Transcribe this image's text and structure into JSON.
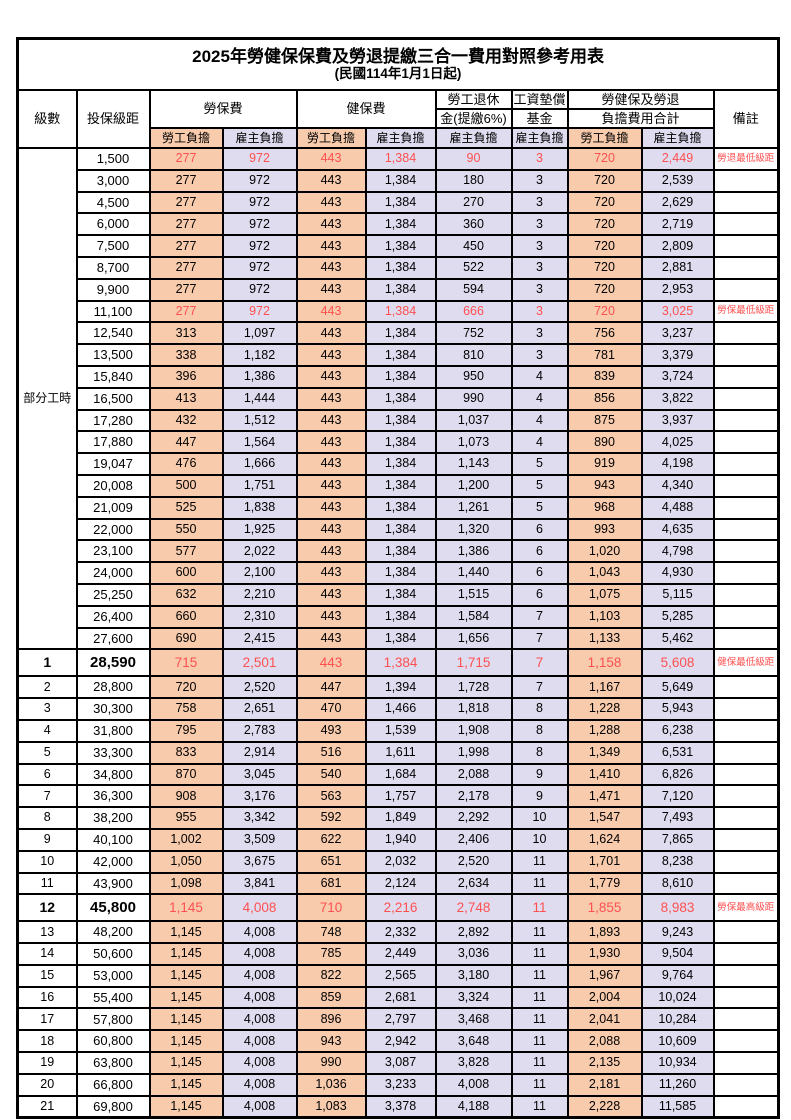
{
  "title": "2025年勞健保保費及勞退提繳三合一費用對照參考用表",
  "subtitle": "(民國114年1月1日起)",
  "headers": {
    "level": "級數",
    "bracket": "投保級距",
    "labor_insurance": "勞保費",
    "health_insurance": "健保費",
    "pension_line1": "勞工退休",
    "pension_line2": "金(提繳6%)",
    "wage_fund_line1": "工資墊償",
    "wage_fund_line2": "基金",
    "total_line1": "勞健保及勞退",
    "total_line2": "負擔費用合計",
    "remarks": "備註",
    "employee_share": "勞工負擔",
    "employer_share": "雇主負擔"
  },
  "part_time_label": "部分工時",
  "part_time_rowspan": 23,
  "colors": {
    "employee_fill": "#F8CBAD",
    "employer_fill": "#DFDCF0",
    "highlight_text": "#FF5050",
    "border": "#000000"
  },
  "column_keys": [
    "labor_employee",
    "labor_employer",
    "health_employee",
    "health_employer",
    "pension_employer",
    "wage_fund_employer",
    "total_employee",
    "total_employer"
  ],
  "rows": [
    {
      "level": "",
      "bracket": "1,500",
      "values": [
        "277",
        "972",
        "443",
        "1,384",
        "90",
        "3",
        "720",
        "2,449"
      ],
      "note": "勞退最低級距",
      "red": true
    },
    {
      "level": "",
      "bracket": "3,000",
      "values": [
        "277",
        "972",
        "443",
        "1,384",
        "180",
        "3",
        "720",
        "2,539"
      ],
      "note": ""
    },
    {
      "level": "",
      "bracket": "4,500",
      "values": [
        "277",
        "972",
        "443",
        "1,384",
        "270",
        "3",
        "720",
        "2,629"
      ],
      "note": ""
    },
    {
      "level": "",
      "bracket": "6,000",
      "values": [
        "277",
        "972",
        "443",
        "1,384",
        "360",
        "3",
        "720",
        "2,719"
      ],
      "note": ""
    },
    {
      "level": "",
      "bracket": "7,500",
      "values": [
        "277",
        "972",
        "443",
        "1,384",
        "450",
        "3",
        "720",
        "2,809"
      ],
      "note": ""
    },
    {
      "level": "",
      "bracket": "8,700",
      "values": [
        "277",
        "972",
        "443",
        "1,384",
        "522",
        "3",
        "720",
        "2,881"
      ],
      "note": ""
    },
    {
      "level": "",
      "bracket": "9,900",
      "values": [
        "277",
        "972",
        "443",
        "1,384",
        "594",
        "3",
        "720",
        "2,953"
      ],
      "note": ""
    },
    {
      "level": "",
      "bracket": "11,100",
      "values": [
        "277",
        "972",
        "443",
        "1,384",
        "666",
        "3",
        "720",
        "3,025"
      ],
      "note": "勞保最低級距",
      "red": true
    },
    {
      "level": "",
      "bracket": "12,540",
      "values": [
        "313",
        "1,097",
        "443",
        "1,384",
        "752",
        "3",
        "756",
        "3,237"
      ],
      "note": ""
    },
    {
      "level": "",
      "bracket": "13,500",
      "values": [
        "338",
        "1,182",
        "443",
        "1,384",
        "810",
        "3",
        "781",
        "3,379"
      ],
      "note": ""
    },
    {
      "level": "",
      "bracket": "15,840",
      "values": [
        "396",
        "1,386",
        "443",
        "1,384",
        "950",
        "4",
        "839",
        "3,724"
      ],
      "note": ""
    },
    {
      "level": "",
      "bracket": "16,500",
      "values": [
        "413",
        "1,444",
        "443",
        "1,384",
        "990",
        "4",
        "856",
        "3,822"
      ],
      "note": ""
    },
    {
      "level": "",
      "bracket": "17,280",
      "values": [
        "432",
        "1,512",
        "443",
        "1,384",
        "1,037",
        "4",
        "875",
        "3,937"
      ],
      "note": ""
    },
    {
      "level": "",
      "bracket": "17,880",
      "values": [
        "447",
        "1,564",
        "443",
        "1,384",
        "1,073",
        "4",
        "890",
        "4,025"
      ],
      "note": ""
    },
    {
      "level": "",
      "bracket": "19,047",
      "values": [
        "476",
        "1,666",
        "443",
        "1,384",
        "1,143",
        "5",
        "919",
        "4,198"
      ],
      "note": ""
    },
    {
      "level": "",
      "bracket": "20,008",
      "values": [
        "500",
        "1,751",
        "443",
        "1,384",
        "1,200",
        "5",
        "943",
        "4,340"
      ],
      "note": ""
    },
    {
      "level": "",
      "bracket": "21,009",
      "values": [
        "525",
        "1,838",
        "443",
        "1,384",
        "1,261",
        "5",
        "968",
        "4,488"
      ],
      "note": ""
    },
    {
      "level": "",
      "bracket": "22,000",
      "values": [
        "550",
        "1,925",
        "443",
        "1,384",
        "1,320",
        "6",
        "993",
        "4,635"
      ],
      "note": ""
    },
    {
      "level": "",
      "bracket": "23,100",
      "values": [
        "577",
        "2,022",
        "443",
        "1,384",
        "1,386",
        "6",
        "1,020",
        "4,798"
      ],
      "note": ""
    },
    {
      "level": "",
      "bracket": "24,000",
      "values": [
        "600",
        "2,100",
        "443",
        "1,384",
        "1,440",
        "6",
        "1,043",
        "4,930"
      ],
      "note": ""
    },
    {
      "level": "",
      "bracket": "25,250",
      "values": [
        "632",
        "2,210",
        "443",
        "1,384",
        "1,515",
        "6",
        "1,075",
        "5,115"
      ],
      "note": ""
    },
    {
      "level": "",
      "bracket": "26,400",
      "values": [
        "660",
        "2,310",
        "443",
        "1,384",
        "1,584",
        "7",
        "1,103",
        "5,285"
      ],
      "note": ""
    },
    {
      "level": "",
      "bracket": "27,600",
      "values": [
        "690",
        "2,415",
        "443",
        "1,384",
        "1,656",
        "7",
        "1,133",
        "5,462"
      ],
      "note": ""
    },
    {
      "level": "1",
      "bracket": "28,590",
      "values": [
        "715",
        "2,501",
        "443",
        "1,384",
        "1,715",
        "7",
        "1,158",
        "5,608"
      ],
      "note": "健保最低級距",
      "red": true,
      "bold": true
    },
    {
      "level": "2",
      "bracket": "28,800",
      "values": [
        "720",
        "2,520",
        "447",
        "1,394",
        "1,728",
        "7",
        "1,167",
        "5,649"
      ],
      "note": ""
    },
    {
      "level": "3",
      "bracket": "30,300",
      "values": [
        "758",
        "2,651",
        "470",
        "1,466",
        "1,818",
        "8",
        "1,228",
        "5,943"
      ],
      "note": ""
    },
    {
      "level": "4",
      "bracket": "31,800",
      "values": [
        "795",
        "2,783",
        "493",
        "1,539",
        "1,908",
        "8",
        "1,288",
        "6,238"
      ],
      "note": ""
    },
    {
      "level": "5",
      "bracket": "33,300",
      "values": [
        "833",
        "2,914",
        "516",
        "1,611",
        "1,998",
        "8",
        "1,349",
        "6,531"
      ],
      "note": ""
    },
    {
      "level": "6",
      "bracket": "34,800",
      "values": [
        "870",
        "3,045",
        "540",
        "1,684",
        "2,088",
        "9",
        "1,410",
        "6,826"
      ],
      "note": ""
    },
    {
      "level": "7",
      "bracket": "36,300",
      "values": [
        "908",
        "3,176",
        "563",
        "1,757",
        "2,178",
        "9",
        "1,471",
        "7,120"
      ],
      "note": ""
    },
    {
      "level": "8",
      "bracket": "38,200",
      "values": [
        "955",
        "3,342",
        "592",
        "1,849",
        "2,292",
        "10",
        "1,547",
        "7,493"
      ],
      "note": ""
    },
    {
      "level": "9",
      "bracket": "40,100",
      "values": [
        "1,002",
        "3,509",
        "622",
        "1,940",
        "2,406",
        "10",
        "1,624",
        "7,865"
      ],
      "note": ""
    },
    {
      "level": "10",
      "bracket": "42,000",
      "values": [
        "1,050",
        "3,675",
        "651",
        "2,032",
        "2,520",
        "11",
        "1,701",
        "8,238"
      ],
      "note": ""
    },
    {
      "level": "11",
      "bracket": "43,900",
      "values": [
        "1,098",
        "3,841",
        "681",
        "2,124",
        "2,634",
        "11",
        "1,779",
        "8,610"
      ],
      "note": ""
    },
    {
      "level": "12",
      "bracket": "45,800",
      "values": [
        "1,145",
        "4,008",
        "710",
        "2,216",
        "2,748",
        "11",
        "1,855",
        "8,983"
      ],
      "note": "勞保最高級距",
      "red": true,
      "bold": true
    },
    {
      "level": "13",
      "bracket": "48,200",
      "values": [
        "1,145",
        "4,008",
        "748",
        "2,332",
        "2,892",
        "11",
        "1,893",
        "9,243"
      ],
      "note": ""
    },
    {
      "level": "14",
      "bracket": "50,600",
      "values": [
        "1,145",
        "4,008",
        "785",
        "2,449",
        "3,036",
        "11",
        "1,930",
        "9,504"
      ],
      "note": ""
    },
    {
      "level": "15",
      "bracket": "53,000",
      "values": [
        "1,145",
        "4,008",
        "822",
        "2,565",
        "3,180",
        "11",
        "1,967",
        "9,764"
      ],
      "note": ""
    },
    {
      "level": "16",
      "bracket": "55,400",
      "values": [
        "1,145",
        "4,008",
        "859",
        "2,681",
        "3,324",
        "11",
        "2,004",
        "10,024"
      ],
      "note": ""
    },
    {
      "level": "17",
      "bracket": "57,800",
      "values": [
        "1,145",
        "4,008",
        "896",
        "2,797",
        "3,468",
        "11",
        "2,041",
        "10,284"
      ],
      "note": ""
    },
    {
      "level": "18",
      "bracket": "60,800",
      "values": [
        "1,145",
        "4,008",
        "943",
        "2,942",
        "3,648",
        "11",
        "2,088",
        "10,609"
      ],
      "note": ""
    },
    {
      "level": "19",
      "bracket": "63,800",
      "values": [
        "1,145",
        "4,008",
        "990",
        "3,087",
        "3,828",
        "11",
        "2,135",
        "10,934"
      ],
      "note": ""
    },
    {
      "level": "20",
      "bracket": "66,800",
      "values": [
        "1,145",
        "4,008",
        "1,036",
        "3,233",
        "4,008",
        "11",
        "2,181",
        "11,260"
      ],
      "note": ""
    },
    {
      "level": "21",
      "bracket": "69,800",
      "values": [
        "1,145",
        "4,008",
        "1,083",
        "3,378",
        "4,188",
        "11",
        "2,228",
        "11,585"
      ],
      "note": ""
    }
  ]
}
